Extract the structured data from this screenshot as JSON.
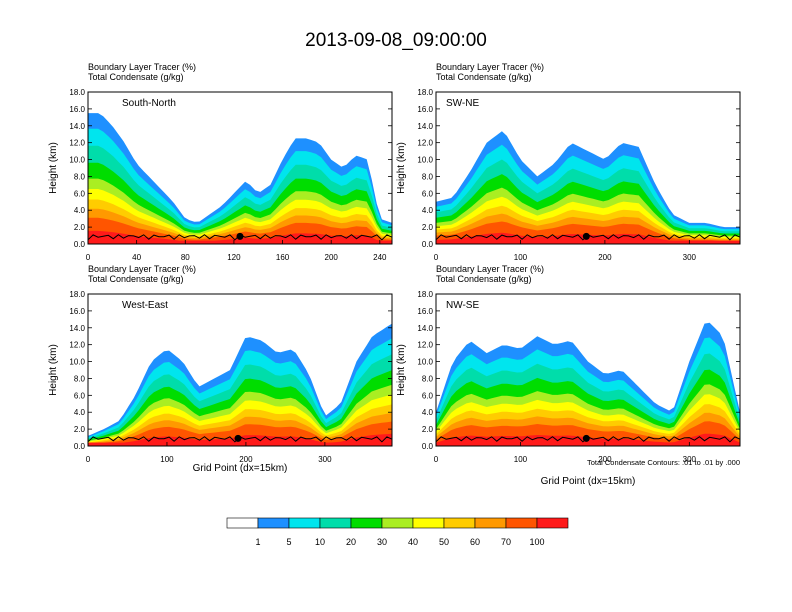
{
  "title": "2013-09-08_09:00:00",
  "panel_header": {
    "line1": "Boundary Layer Tracer   (%)",
    "line2": "Total Condensate   (g/kg)"
  },
  "y_axis_label": "Height (km)",
  "x_axis_label": "Grid Point (dx=15km)",
  "contour_note": "Total Condensate Contours: .01 to .01 by .000",
  "colorbar": {
    "labels": [
      "1",
      "5",
      "10",
      "20",
      "30",
      "40",
      "50",
      "60",
      "70",
      "100"
    ],
    "colors": [
      "#ffffff",
      "#1e90ff",
      "#00e5ee",
      "#00ddaa",
      "#00dd00",
      "#aaee22",
      "#ffff00",
      "#ffcc00",
      "#ff9900",
      "#ff5500",
      "#ff1a1a"
    ]
  },
  "chart_data": [
    {
      "type": "heatmap",
      "panel": "South-North",
      "x_ticks": [
        "0",
        "40",
        "80",
        "120",
        "160",
        "200",
        "240"
      ],
      "xlim": [
        0,
        250
      ],
      "y_ticks": [
        "0.0",
        "2.0",
        "4.0",
        "6.0",
        "8.0",
        "10.0",
        "12.0",
        "14.0",
        "16.0",
        "18.0"
      ],
      "ylim": [
        0,
        18
      ],
      "marker_x": 125,
      "tracer_tops": [
        [
          0,
          15.5
        ],
        [
          10,
          15.5
        ],
        [
          20,
          14
        ],
        [
          30,
          12
        ],
        [
          40,
          9.5
        ],
        [
          50,
          8
        ],
        [
          60,
          6.5
        ],
        [
          70,
          5
        ],
        [
          80,
          3
        ],
        [
          90,
          2.5
        ],
        [
          100,
          3.5
        ],
        [
          110,
          4.5
        ],
        [
          120,
          6
        ],
        [
          130,
          7.5
        ],
        [
          140,
          6
        ],
        [
          150,
          7
        ],
        [
          160,
          10
        ],
        [
          170,
          12.5
        ],
        [
          180,
          12.5
        ],
        [
          190,
          12
        ],
        [
          200,
          10
        ],
        [
          210,
          9
        ],
        [
          220,
          10.5
        ],
        [
          230,
          10
        ],
        [
          240,
          3
        ],
        [
          250,
          2.5
        ]
      ]
    },
    {
      "type": "heatmap",
      "panel": "SW-NE",
      "x_ticks": [
        "0",
        "100",
        "200",
        "300"
      ],
      "xlim": [
        0,
        360
      ],
      "y_ticks": [
        "0.0",
        "2.0",
        "4.0",
        "6.0",
        "8.0",
        "10.0",
        "12.0",
        "14.0",
        "16.0",
        "18.0"
      ],
      "ylim": [
        0,
        18
      ],
      "marker_x": 178,
      "tracer_tops": [
        [
          0,
          5
        ],
        [
          20,
          5.5
        ],
        [
          40,
          8.5
        ],
        [
          60,
          12
        ],
        [
          80,
          13.5
        ],
        [
          100,
          10
        ],
        [
          120,
          8
        ],
        [
          140,
          9.5
        ],
        [
          160,
          12
        ],
        [
          180,
          11
        ],
        [
          200,
          10
        ],
        [
          220,
          12
        ],
        [
          240,
          11.5
        ],
        [
          260,
          7
        ],
        [
          280,
          3.5
        ],
        [
          300,
          2.5
        ],
        [
          320,
          2.5
        ],
        [
          340,
          2
        ],
        [
          360,
          2
        ]
      ]
    },
    {
      "type": "heatmap",
      "panel": "West-East",
      "x_ticks": [
        "0",
        "100",
        "200",
        "300"
      ],
      "xlim": [
        0,
        385
      ],
      "y_ticks": [
        "0.0",
        "2.0",
        "4.0",
        "6.0",
        "8.0",
        "10.0",
        "12.0",
        "14.0",
        "16.0",
        "18.0"
      ],
      "ylim": [
        0,
        18
      ],
      "marker_x": 190,
      "tracer_tops": [
        [
          0,
          1.2
        ],
        [
          20,
          2
        ],
        [
          40,
          3
        ],
        [
          60,
          6
        ],
        [
          80,
          10
        ],
        [
          100,
          11.5
        ],
        [
          120,
          10
        ],
        [
          140,
          7
        ],
        [
          160,
          8
        ],
        [
          180,
          9
        ],
        [
          200,
          13
        ],
        [
          220,
          12.5
        ],
        [
          240,
          11
        ],
        [
          260,
          11.5
        ],
        [
          280,
          8.5
        ],
        [
          300,
          3.5
        ],
        [
          320,
          5
        ],
        [
          340,
          10
        ],
        [
          360,
          13
        ],
        [
          385,
          14.5
        ]
      ]
    },
    {
      "type": "heatmap",
      "panel": "NW-SE",
      "x_ticks": [
        "0",
        "100",
        "200",
        "300"
      ],
      "xlim": [
        0,
        360
      ],
      "y_ticks": [
        "0.0",
        "2.0",
        "4.0",
        "6.0",
        "8.0",
        "10.0",
        "12.0",
        "14.0",
        "16.0",
        "18.0"
      ],
      "ylim": [
        0,
        18
      ],
      "marker_x": 178,
      "tracer_tops": [
        [
          0,
          4
        ],
        [
          20,
          10
        ],
        [
          40,
          12.5
        ],
        [
          60,
          11
        ],
        [
          80,
          12
        ],
        [
          100,
          11.5
        ],
        [
          120,
          13
        ],
        [
          140,
          12
        ],
        [
          160,
          12.5
        ],
        [
          180,
          10
        ],
        [
          200,
          8.5
        ],
        [
          220,
          9
        ],
        [
          240,
          7
        ],
        [
          260,
          5
        ],
        [
          280,
          4
        ],
        [
          300,
          10
        ],
        [
          320,
          15
        ],
        [
          340,
          13
        ],
        [
          360,
          4
        ]
      ]
    }
  ]
}
